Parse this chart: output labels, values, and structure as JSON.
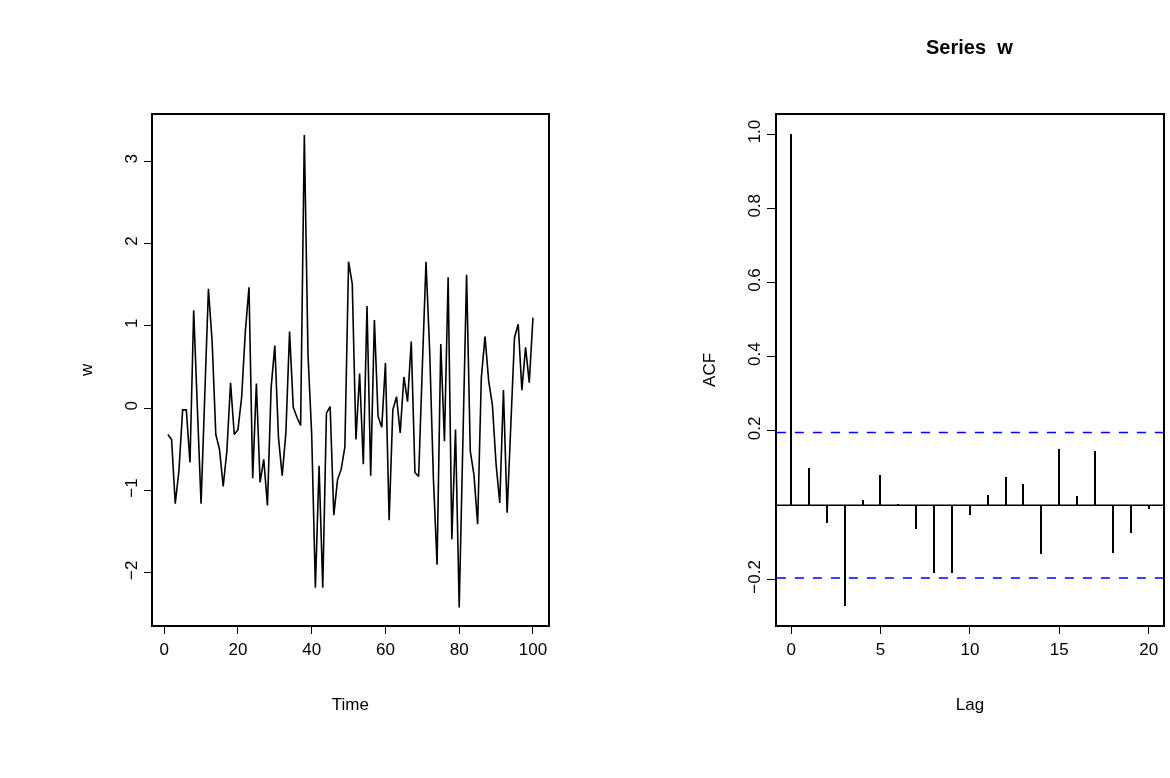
{
  "chart_data": [
    {
      "type": "line",
      "xlabel": "Time",
      "ylabel": "w",
      "color": "#000000",
      "x": [
        1,
        2,
        3,
        4,
        5,
        6,
        7,
        8,
        9,
        10,
        11,
        12,
        13,
        14,
        15,
        16,
        17,
        18,
        19,
        20,
        21,
        22,
        23,
        24,
        25,
        26,
        27,
        28,
        29,
        30,
        31,
        32,
        33,
        34,
        35,
        36,
        37,
        38,
        39,
        40,
        41,
        42,
        43,
        44,
        45,
        46,
        47,
        48,
        49,
        50,
        51,
        52,
        53,
        54,
        55,
        56,
        57,
        58,
        59,
        60,
        61,
        62,
        63,
        64,
        65,
        66,
        67,
        68,
        69,
        70,
        71,
        72,
        73,
        74,
        75,
        76,
        77,
        78,
        79,
        80,
        81,
        82,
        83,
        84,
        85,
        86,
        87,
        88,
        89,
        90,
        91,
        92,
        93,
        94,
        95,
        96,
        97,
        98,
        99,
        100
      ],
      "values": [
        -0.32,
        -0.38,
        -1.16,
        -0.76,
        -0.02,
        -0.02,
        -0.66,
        1.19,
        0.0,
        -1.16,
        0.15,
        1.45,
        0.81,
        -0.32,
        -0.5,
        -0.95,
        -0.52,
        0.31,
        -0.32,
        -0.26,
        0.13,
        0.93,
        1.47,
        -0.85,
        0.3,
        -0.9,
        -0.62,
        -1.18,
        0.25,
        0.76,
        -0.36,
        -0.82,
        -0.3,
        0.93,
        0.01,
        -0.11,
        -0.21,
        3.32,
        0.65,
        -0.32,
        -2.18,
        -0.7,
        -2.18,
        -0.06,
        0.02,
        -1.3,
        -0.87,
        -0.74,
        -0.47,
        1.78,
        1.51,
        -0.38,
        0.42,
        -0.68,
        1.24,
        -0.82,
        1.07,
        -0.1,
        -0.23,
        0.55,
        -1.36,
        -0.02,
        0.14,
        -0.3,
        0.38,
        0.08,
        0.81,
        -0.78,
        -0.83,
        0.5,
        1.78,
        0.69,
        -0.85,
        -1.9,
        0.78,
        -0.4,
        1.59,
        -1.59,
        -0.26,
        -2.42,
        -0.4,
        1.62,
        -0.52,
        -0.81,
        -1.41,
        0.37,
        0.87,
        0.33,
        0.04,
        -0.68,
        -1.15,
        0.22,
        -1.27,
        -0.2,
        0.86,
        1.02,
        0.22,
        0.74,
        0.31,
        1.1
      ],
      "xlim": [
        -2.96,
        103.96
      ],
      "xticks": [
        0,
        20,
        40,
        60,
        80,
        100
      ],
      "ylim": [
        -2.63,
        3.56
      ],
      "yticks": [
        -2,
        -1,
        0,
        1,
        2,
        3
      ],
      "marker": "none",
      "line_style": "solid"
    },
    {
      "type": "bar",
      "title": "Series  w",
      "xlabel": "Lag",
      "ylabel": "ACF",
      "color": "#000000",
      "x": [
        0,
        1,
        2,
        3,
        4,
        5,
        6,
        7,
        8,
        9,
        10,
        11,
        12,
        13,
        14,
        15,
        16,
        17,
        18,
        19,
        20
      ],
      "values": [
        1.0,
        0.099,
        -0.047,
        -0.271,
        0.013,
        0.081,
        0.004,
        -0.065,
        -0.184,
        -0.184,
        -0.028,
        0.026,
        0.076,
        0.057,
        -0.133,
        0.15,
        0.024,
        0.146,
        -0.128,
        -0.076,
        -0.01
      ],
      "xlim": [
        -0.8,
        20.8
      ],
      "xticks": [
        0,
        5,
        10,
        15,
        20
      ],
      "ylim": [
        -0.322,
        1.051
      ],
      "yticks": [
        -0.2,
        0.2,
        0.4,
        0.6,
        0.8,
        {
          "value": 1.0,
          "label": "1.0"
        }
      ],
      "ref_lines": [
        {
          "axis": "y",
          "value": 0,
          "color": "#000000",
          "line_style": "solid"
        },
        {
          "axis": "y",
          "value": 0.196,
          "color": "#0000ff",
          "line_style": "dashed"
        },
        {
          "axis": "y",
          "value": -0.196,
          "color": "#0000ff",
          "line_style": "dashed"
        }
      ]
    }
  ]
}
